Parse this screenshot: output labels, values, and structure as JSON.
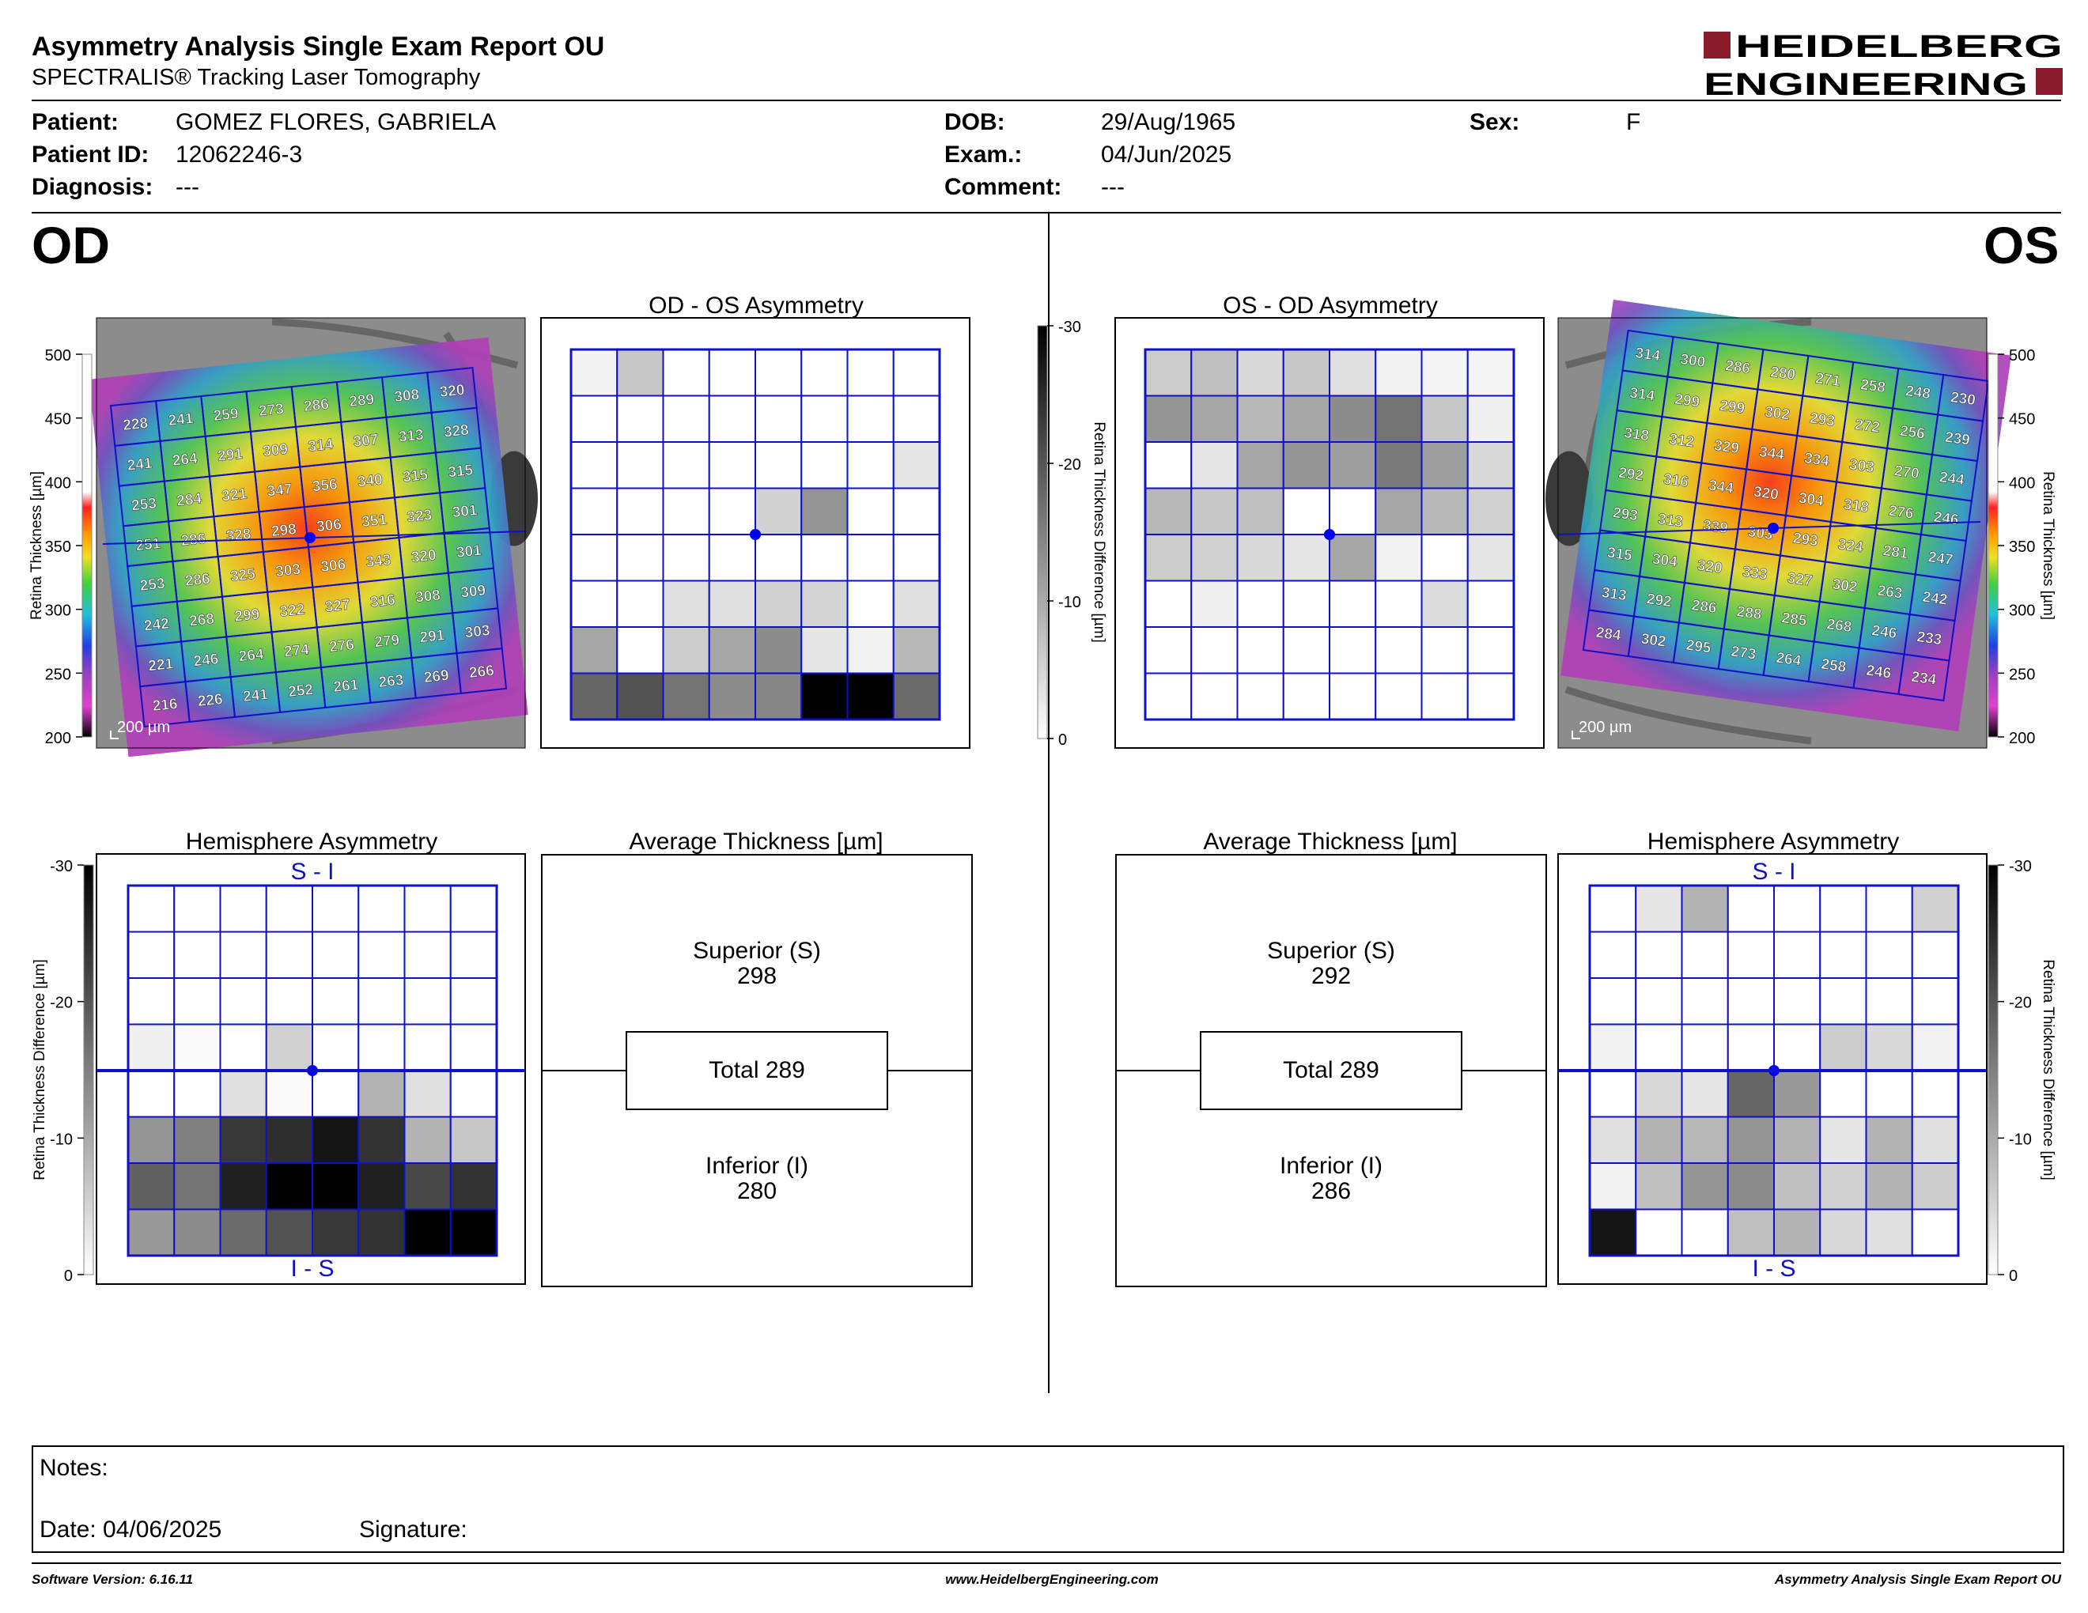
{
  "report": {
    "title": "Asymmetry Analysis Single Exam Report OU",
    "subtitle": "SPECTRALIS® Tracking Laser Tomography",
    "logo_line1": "HEIDELBERG",
    "logo_line2": "ENGINEERING"
  },
  "patient": {
    "patient_label": "Patient:",
    "patient_value": "GOMEZ FLORES, GABRIELA",
    "id_label": "Patient ID:",
    "id_value": "12062246-3",
    "diagnosis_label": "Diagnosis:",
    "diagnosis_value": "---",
    "dob_label": "DOB:",
    "dob_value": "29/Aug/1965",
    "exam_label": "Exam.:",
    "exam_value": "04/Jun/2025",
    "comment_label": "Comment:",
    "comment_value": "---",
    "sex_label": "Sex:",
    "sex_value": "F"
  },
  "eyes": {
    "od": "OD",
    "os": "OS"
  },
  "panels": {
    "od_os_asym": "OD - OS Asymmetry",
    "os_od_asym": "OS - OD Asymmetry",
    "hemisphere": "Hemisphere Asymmetry",
    "avg_thickness": "Average Thickness [µm]",
    "si": "S - I",
    "is": "I - S",
    "scale": "200 µm"
  },
  "axes": {
    "thickness_title": "Retina Thickness [µm]",
    "thickness_ticks": [
      "500",
      "450",
      "400",
      "350",
      "300",
      "250",
      "200"
    ],
    "difference_title": "Retina Thickness Difference [µm]",
    "difference_ticks": [
      "-30",
      "-20",
      "-10",
      "0"
    ]
  },
  "od_thickness_grid": [
    [
      "228",
      "241",
      "259",
      "273",
      "286",
      "289",
      "308",
      "320"
    ],
    [
      "241",
      "264",
      "291",
      "309",
      "314",
      "307",
      "313",
      "328"
    ],
    [
      "253",
      "284",
      "321",
      "347",
      "356",
      "340",
      "315",
      "315"
    ],
    [
      "251",
      "286",
      "328",
      "298",
      "306",
      "351",
      "323",
      "301"
    ],
    [
      "253",
      "286",
      "325",
      "303",
      "306",
      "343",
      "320",
      "301"
    ],
    [
      "242",
      "268",
      "299",
      "322",
      "327",
      "316",
      "308",
      "309"
    ],
    [
      "221",
      "246",
      "264",
      "274",
      "276",
      "279",
      "291",
      "303"
    ],
    [
      "216",
      "226",
      "241",
      "252",
      "261",
      "263",
      "269",
      "266"
    ]
  ],
  "os_thickness_grid": [
    [
      "314",
      "300",
      "286",
      "280",
      "271",
      "258",
      "248",
      "230"
    ],
    [
      "314",
      "299",
      "299",
      "302",
      "293",
      "272",
      "256",
      "239"
    ],
    [
      "318",
      "312",
      "329",
      "344",
      "334",
      "303",
      "270",
      "244"
    ],
    [
      "292",
      "316",
      "344",
      "320",
      "304",
      "318",
      "276",
      "246"
    ],
    [
      "293",
      "313",
      "339",
      "303",
      "293",
      "324",
      "281",
      "247"
    ],
    [
      "315",
      "304",
      "320",
      "333",
      "327",
      "302",
      "263",
      "242"
    ],
    [
      "313",
      "292",
      "286",
      "288",
      "285",
      "268",
      "246",
      "233"
    ],
    [
      "284",
      "302",
      "295",
      "273",
      "264",
      "258",
      "246",
      "234"
    ]
  ],
  "od_asym_shade": [
    [
      0.05,
      0.22,
      0,
      0,
      0,
      0,
      0,
      0
    ],
    [
      0,
      0,
      0,
      0,
      0,
      0,
      0,
      0
    ],
    [
      0,
      0,
      0,
      0,
      0,
      0,
      0,
      0.1
    ],
    [
      0,
      0,
      0,
      0,
      0.18,
      0.42,
      0,
      0
    ],
    [
      0,
      0,
      0,
      0,
      0,
      0,
      0,
      0
    ],
    [
      0,
      0,
      0.12,
      0.12,
      0.18,
      0.16,
      0,
      0.12
    ],
    [
      0.35,
      0,
      0.2,
      0.35,
      0.45,
      0.1,
      0.05,
      0.28
    ],
    [
      0.6,
      0.68,
      0.55,
      0.45,
      0.48,
      1.0,
      1.0,
      0.58
    ]
  ],
  "os_asym_shade": [
    [
      0.2,
      0.25,
      0.15,
      0.22,
      0.12,
      0.05,
      0.04,
      0.04
    ],
    [
      0.42,
      0.35,
      0.28,
      0.35,
      0.45,
      0.55,
      0.22,
      0.06
    ],
    [
      0,
      0.1,
      0.35,
      0.42,
      0.38,
      0.52,
      0.38,
      0.15
    ],
    [
      0.28,
      0.22,
      0.25,
      0,
      0,
      0.35,
      0.28,
      0.18
    ],
    [
      0.2,
      0.18,
      0.15,
      0.1,
      0.35,
      0.05,
      0,
      0.1
    ],
    [
      0,
      0.06,
      0,
      0,
      0,
      0,
      0.14,
      0
    ],
    [
      0,
      0,
      0,
      0,
      0,
      0,
      0,
      0
    ],
    [
      0,
      0,
      0,
      0,
      0,
      0,
      0,
      0
    ]
  ],
  "od_hemi_shade": [
    [
      0,
      0,
      0,
      0,
      0,
      0,
      0,
      0
    ],
    [
      0,
      0,
      0,
      0,
      0,
      0,
      0,
      0
    ],
    [
      0,
      0,
      0,
      0,
      0,
      0,
      0,
      0
    ],
    [
      0.06,
      0.02,
      0,
      0.18,
      0,
      0,
      0,
      0
    ],
    [
      0,
      0,
      0.12,
      0.02,
      0,
      0.3,
      0.12,
      0
    ],
    [
      0.42,
      0.5,
      0.78,
      0.82,
      0.92,
      0.8,
      0.3,
      0.22
    ],
    [
      0.62,
      0.55,
      0.88,
      1.0,
      1.0,
      0.88,
      0.72,
      0.8
    ],
    [
      0.4,
      0.45,
      0.58,
      0.68,
      0.78,
      0.8,
      1.0,
      1.0
    ]
  ],
  "os_hemi_shade": [
    [
      0,
      0.1,
      0.3,
      0,
      0,
      0,
      0,
      0.18
    ],
    [
      0,
      0,
      0,
      0,
      0,
      0,
      0,
      0
    ],
    [
      0,
      0,
      0,
      0,
      0,
      0,
      0,
      0
    ],
    [
      0.05,
      0,
      0,
      0,
      0,
      0.2,
      0.15,
      0.05
    ],
    [
      0,
      0.15,
      0.1,
      0.6,
      0.4,
      0,
      0,
      0
    ],
    [
      0.12,
      0.3,
      0.28,
      0.42,
      0.3,
      0.1,
      0.3,
      0.12
    ],
    [
      0.05,
      0.25,
      0.42,
      0.45,
      0.25,
      0.18,
      0.3,
      0.2
    ],
    [
      0.92,
      0,
      0,
      0.25,
      0.3,
      0.15,
      0.12,
      0
    ]
  ],
  "od_avg": {
    "superior_label": "Superior (S)",
    "superior_value": "298",
    "total": "Total 289",
    "inferior_label": "Inferior (I)",
    "inferior_value": "280"
  },
  "os_avg": {
    "superior_label": "Superior (S)",
    "superior_value": "292",
    "total": "Total 289",
    "inferior_label": "Inferior (I)",
    "inferior_value": "286"
  },
  "notes": {
    "notes_label": "Notes:",
    "date_label": "Date: 04/06/2025",
    "signature_label": "Signature:"
  },
  "footer": {
    "software": "Software Version: 6.16.11",
    "website": "www.HeidelbergEngineering.com",
    "report_name": "Asymmetry Analysis Single Exam Report OU"
  },
  "colors": {
    "grid_blue": "#1010c8",
    "logo_red": "#8b1c2c",
    "fovea": "#0000ff"
  }
}
